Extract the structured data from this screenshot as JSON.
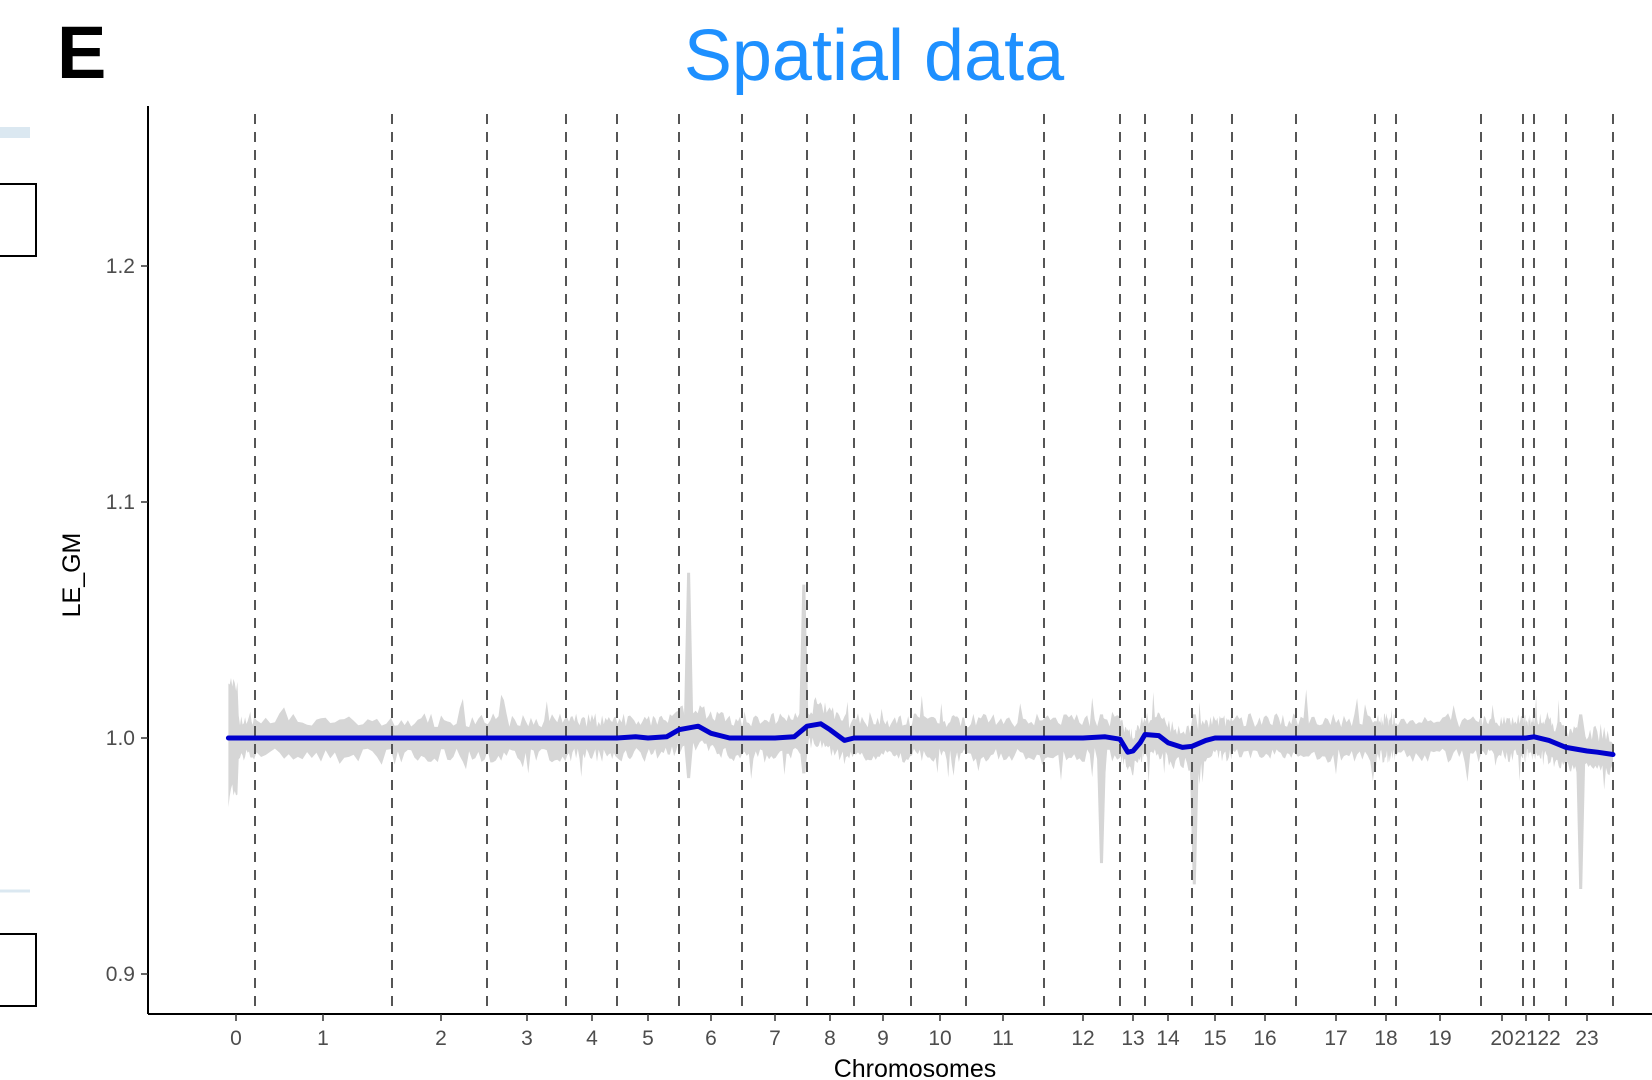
{
  "panel_label": "E",
  "chart_data": {
    "type": "line",
    "title": "Spatial data",
    "xlabel": "Chromosomes",
    "ylabel": "LE_GM",
    "ylim": [
      0.885,
      1.265
    ],
    "y_ticks": [
      "0.9",
      "1.0",
      "1.1",
      "1.2"
    ],
    "grid": false,
    "legend": "none",
    "colors": {
      "title": "#1e90ff",
      "line": "#0000cd",
      "band": "#d6d6d6",
      "divider": "#555555"
    },
    "x_categories": [
      "0",
      "1",
      "2",
      "3",
      "4",
      "5",
      "6",
      "7",
      "8",
      "9",
      "10",
      "11",
      "12",
      "13",
      "14",
      "15",
      "16",
      "17",
      "18",
      "19",
      "20",
      "21",
      "22",
      "23"
    ],
    "chromosome_boundaries": [
      0.5,
      1.5,
      2.5,
      3.5,
      4.5,
      5.5,
      6.5,
      7.5,
      8.5,
      9.5,
      10.5,
      11.5,
      12.5,
      13.5,
      14.5,
      15.5,
      16.5,
      17.5,
      18.5,
      19.5,
      20.5,
      21.5,
      22.5,
      23.5
    ],
    "series": [
      {
        "x": [
          -0.2,
          0,
          0.5,
          1,
          1.5,
          2,
          2.5,
          3,
          3.5,
          4,
          4.3,
          4.5,
          4.8,
          5,
          5.3,
          5.5,
          5.8,
          6,
          6.3,
          6.5,
          6.8,
          7,
          7.3,
          7.5,
          7.8,
          8,
          8.3,
          8.5,
          8.8,
          9,
          9.5,
          10,
          10.5,
          11,
          11.5,
          12,
          12.3,
          12.5,
          12.8,
          13,
          13.3,
          13.5,
          13.8,
          14,
          14.3,
          14.5,
          14.8,
          15,
          15.5,
          16,
          16.5,
          17,
          17.5,
          18,
          18.5,
          19,
          19.5,
          20,
          20.5,
          21,
          21.5,
          22,
          22.5,
          23,
          23.2,
          23.5
        ],
        "y": [
          1.0,
          1.0,
          1.0,
          1.0,
          1.0,
          1.0,
          1.0,
          1.0,
          1.0,
          1.0,
          1.0,
          1.0,
          1.0005,
          1.0,
          1.0005,
          1.0035,
          1.005,
          1.002,
          1.0,
          1.0,
          1.0,
          1.0,
          1.0005,
          1.005,
          1.006,
          1.0035,
          0.999,
          1.0,
          1.0,
          1.0,
          1.0,
          1.0,
          1.0,
          1.0,
          1.0,
          1.0,
          1.0005,
          0.9995,
          0.994,
          0.9945,
          0.998,
          1.0015,
          1.001,
          0.998,
          0.996,
          0.9965,
          0.999,
          1.0,
          1.0,
          1.0,
          1.0,
          1.0,
          1.0,
          1.0,
          1.0,
          1.0,
          1.0,
          1.0,
          1.0,
          1.0,
          1.0005,
          0.999,
          0.996,
          0.9945,
          0.994,
          0.993
        ]
      }
    ]
  }
}
